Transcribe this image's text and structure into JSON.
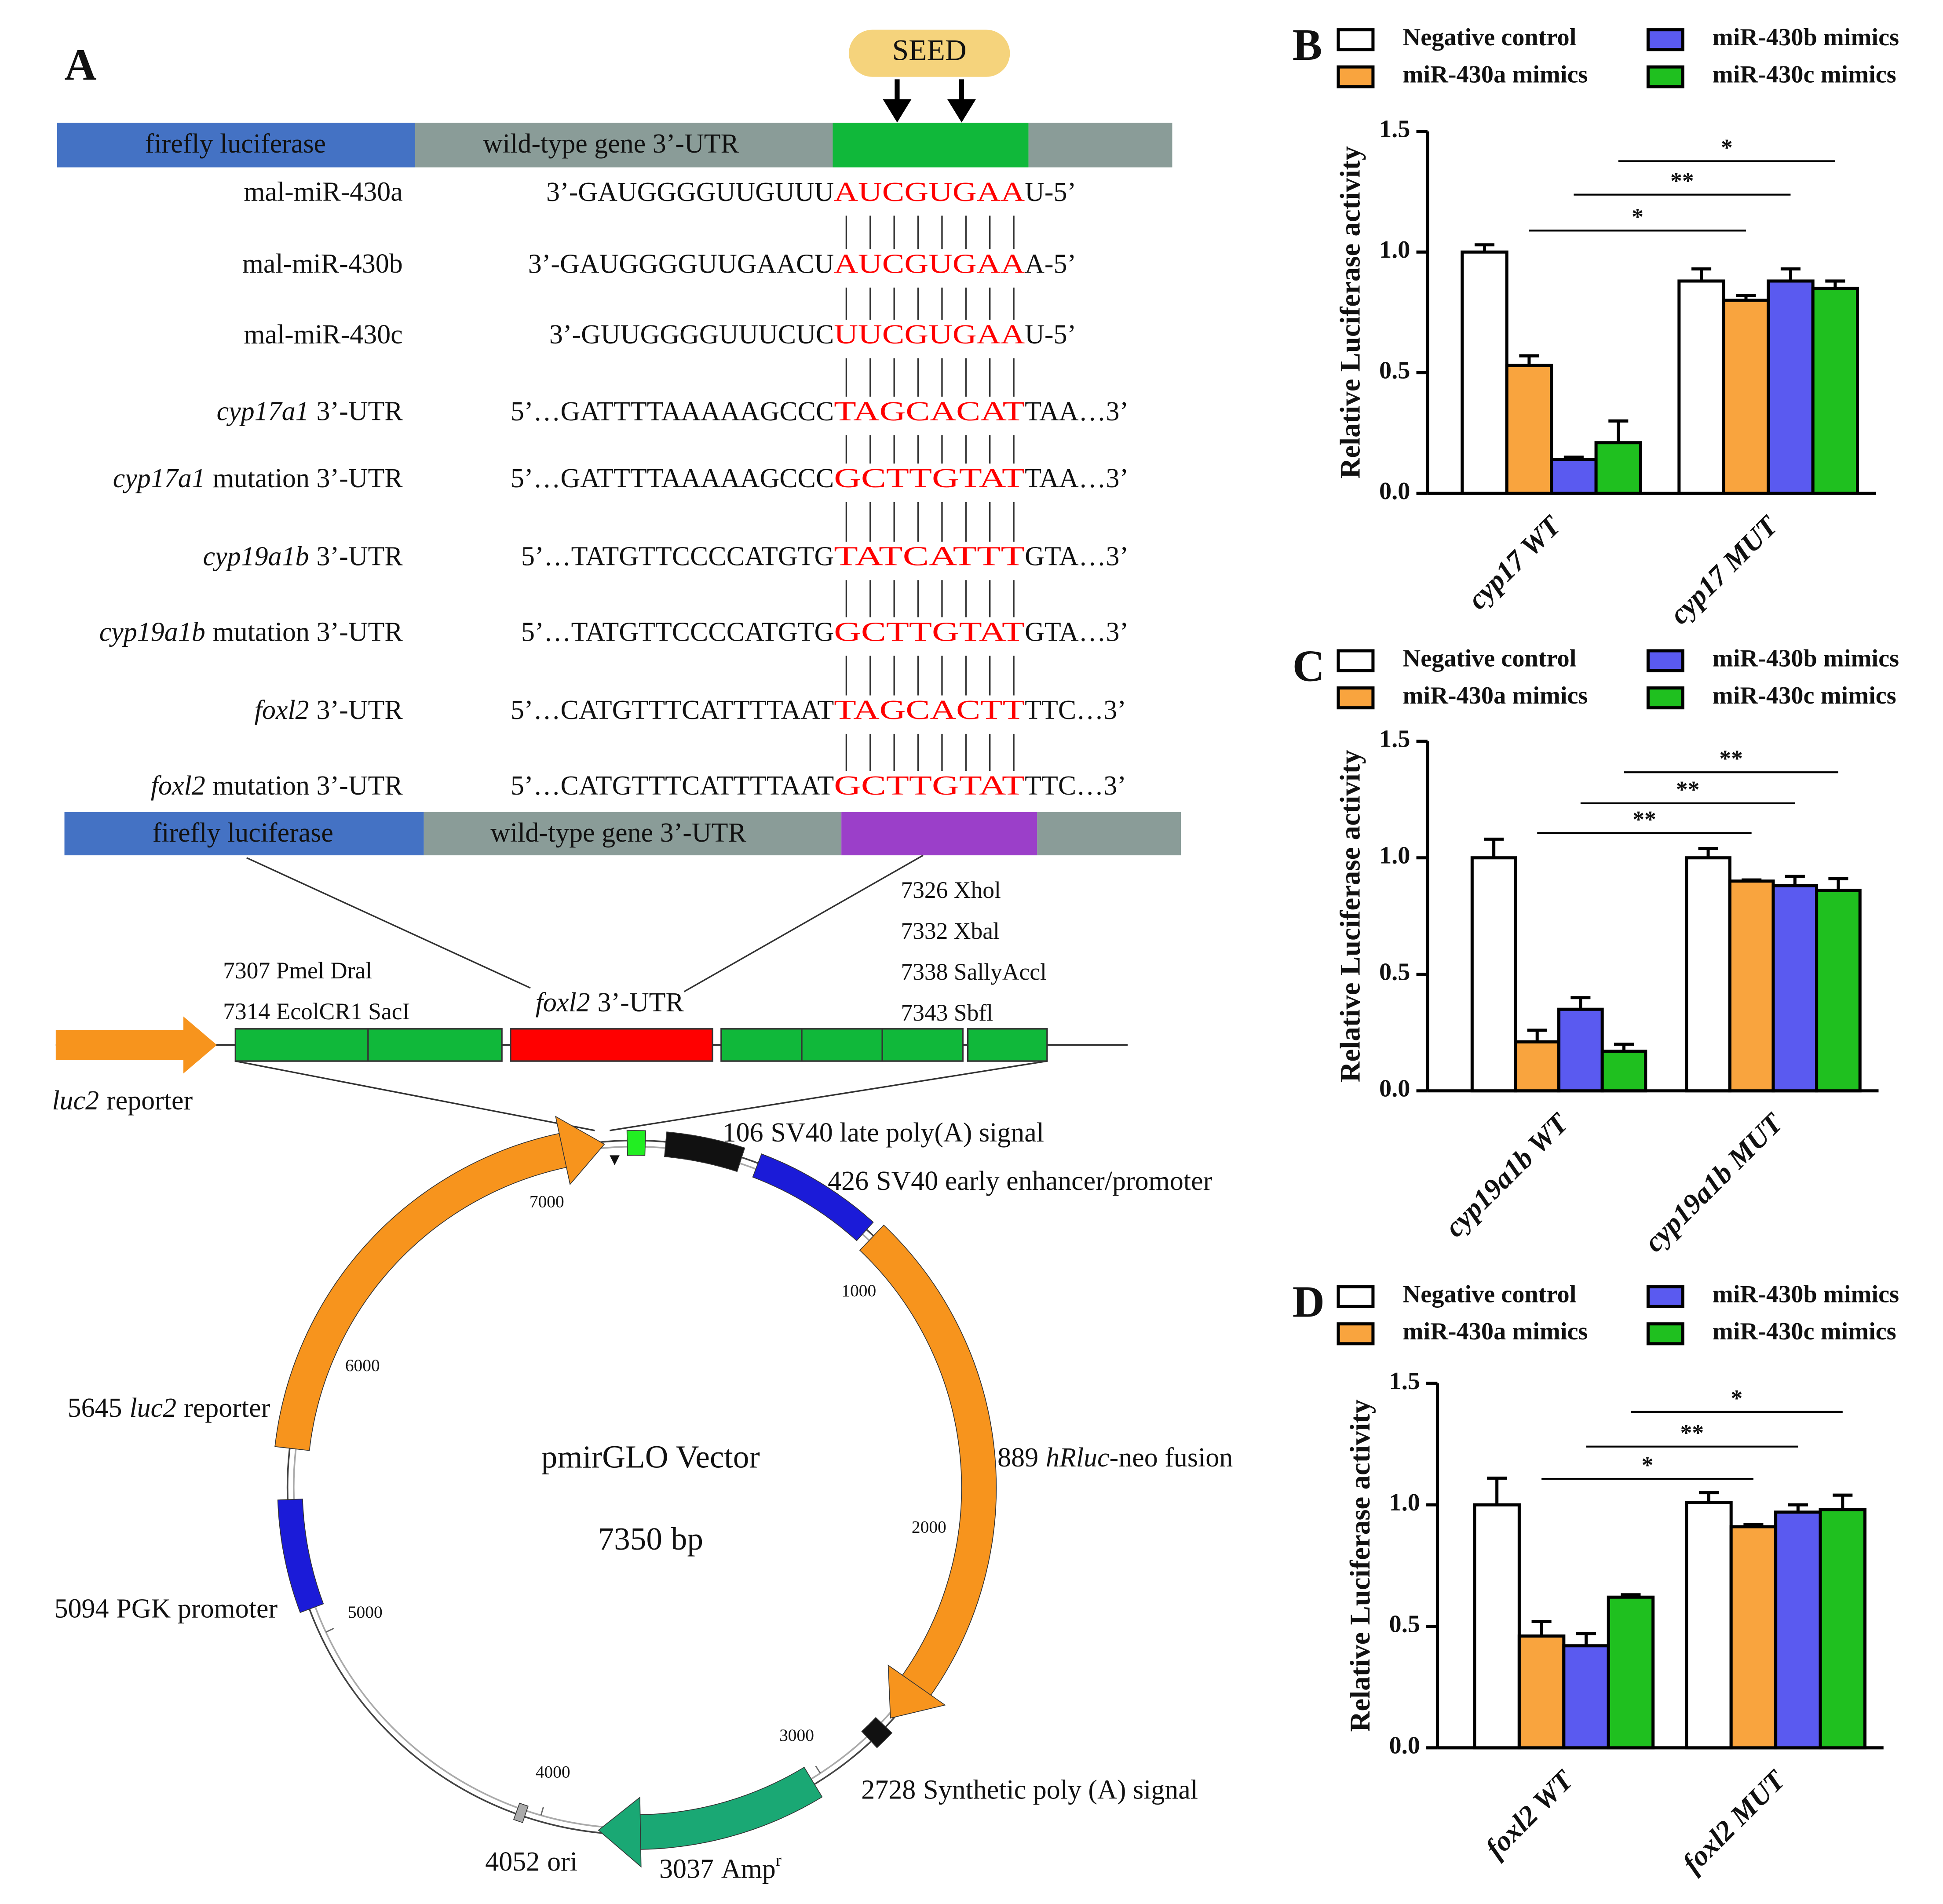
{
  "panel_a": {
    "label": "A",
    "seed": "SEED",
    "top_construct": {
      "luciferase": "firefly luciferase",
      "utr": "wild-type gene 3’-UTR"
    },
    "alignment": [
      {
        "name": "mal-miR-430a",
        "left": "3’-GAUGGGGUUGUUU",
        "seed": "AUCGUGAA",
        "right": "U-5’"
      },
      {
        "name": "mal-miR-430b",
        "left": "3’-GAUGGGGUUGAACU",
        "seed": "AUCGUGAA",
        "right": "A-5’"
      },
      {
        "name": "mal-miR-430c",
        "left": "3’-GUUGGGGUUUCUC",
        "seed": "UUCGUGAA",
        "right": "U-5’"
      },
      {
        "gene": "cyp17a1",
        "name": "3’-UTR",
        "left": "5’…GATTTTAAAAAGCCC",
        "seed": "TAGCACAT",
        "right": "TAA…3’"
      },
      {
        "gene": "cyp17a1",
        "name": "mutation 3’-UTR",
        "left": "5’…GATTTTAAAAAGCCC",
        "seed": "GCTTGTAT",
        "right": "TAA…3’"
      },
      {
        "gene": "cyp19a1b",
        "name": "3’-UTR",
        "left": "5’…TATGTTCCCCATGTG",
        "seed": "TATCATTT",
        "right": "GTA…3’"
      },
      {
        "gene": "cyp19a1b",
        "name": "mutation 3’-UTR",
        "left": "5’…TATGTTCCCCATGTG",
        "seed": "GCTTGTAT",
        "right": "GTA…3’"
      },
      {
        "gene": "foxl2",
        "name": "3’-UTR",
        "left": "5’…CATGTTTCATTTTAAT",
        "seed": "TAGCACTT",
        "right": "TTC…3’"
      },
      {
        "gene": "foxl2",
        "name": "mutation 3’-UTR",
        "left": "5’…CATGTTTCATTTTAAT",
        "seed": "GCTTGTAT",
        "right": "TTC…3’"
      }
    ],
    "bottom_construct": {
      "luciferase": "firefly luciferase",
      "utr": "wild-type gene 3’-UTR"
    },
    "sites_right": [
      "7326 Xhol",
      "7332 Xbal",
      "7338 SallyAccl",
      "7343 Sbfl"
    ],
    "sites_left": [
      "7307 Pmel Dral",
      "7314 EcolCR1 SacI"
    ],
    "insert": {
      "gene": "foxl2",
      "name": "3’-UTR"
    },
    "reporter": {
      "gene": "luc2",
      "name": "reporter"
    },
    "plasmid": {
      "name": "pmirGLO Vector",
      "length": 7350,
      "unit": "bp",
      "ticks": [
        1000,
        2000,
        3000,
        4000,
        5000,
        6000,
        7000
      ],
      "features": [
        {
          "position": 106,
          "name": "SV40 late poly(A) signal"
        },
        {
          "position": 426,
          "name": "SV40 early enhancer/promoter"
        },
        {
          "position": 889,
          "italic": "hRluc",
          "name": "-neo fusion"
        },
        {
          "position": 2728,
          "name": "Synthetic poly (A) signal"
        },
        {
          "position": 3037,
          "name": "Amp",
          "sup": "r"
        },
        {
          "position": 4052,
          "name": "ori"
        },
        {
          "position": 5094,
          "name": "PGK promoter"
        },
        {
          "position": 5645,
          "italic": "luc2",
          "name": "reporter"
        }
      ]
    }
  },
  "chart_data": [
    {
      "type": "bar",
      "label": "B",
      "ylabel": "Relative Luciferase activity",
      "categories": [
        "cyp17 WT",
        "cyp17 MUT"
      ],
      "series": [
        {
          "name": "Negative control",
          "color": "#ffffff",
          "values": [
            1.0,
            0.88
          ],
          "errors": [
            0.03,
            0.05
          ]
        },
        {
          "name": "miR-430a mimics",
          "color": "#f9a43e",
          "values": [
            0.53,
            0.8
          ],
          "errors": [
            0.04,
            0.02
          ]
        },
        {
          "name": "miR-430b mimics",
          "color": "#5a5af0",
          "values": [
            0.14,
            0.88
          ],
          "errors": [
            0.01,
            0.05
          ]
        },
        {
          "name": "miR-430c mimics",
          "color": "#1fc01f",
          "values": [
            0.21,
            0.85
          ],
          "errors": [
            0.09,
            0.03
          ]
        }
      ],
      "ylim": [
        0,
        1.5
      ],
      "yticks": [
        {
          "value": 0,
          "label": "0.0"
        },
        0.5,
        {
          "value": 1,
          "label": "1.0"
        },
        1.5
      ],
      "significance": [
        "*",
        "**",
        "*"
      ]
    },
    {
      "type": "bar",
      "label": "C",
      "ylabel": "Relative Luciferase activity",
      "categories": [
        "cyp19a1b WT",
        "cyp19a1b MUT"
      ],
      "series": [
        {
          "name": "Negative control",
          "color": "#ffffff",
          "values": [
            1.0,
            1.0
          ],
          "errors": [
            0.08,
            0.04
          ]
        },
        {
          "name": "miR-430a mimics",
          "color": "#f9a43e",
          "values": [
            0.21,
            0.9
          ],
          "errors": [
            0.05,
            0.005
          ]
        },
        {
          "name": "miR-430b mimics",
          "color": "#5a5af0",
          "values": [
            0.35,
            0.88
          ],
          "errors": [
            0.05,
            0.04
          ]
        },
        {
          "name": "miR-430c mimics",
          "color": "#1fc01f",
          "values": [
            0.17,
            0.86
          ],
          "errors": [
            0.03,
            0.05
          ]
        }
      ],
      "ylim": [
        0,
        1.5
      ],
      "yticks": [
        {
          "value": 0,
          "label": "0.0"
        },
        0.5,
        {
          "value": 1,
          "label": "1.0"
        },
        1.5
      ],
      "significance": [
        "**",
        "**",
        "**"
      ]
    },
    {
      "type": "bar",
      "label": "D",
      "ylabel": "Relative Luciferase activity",
      "categories": [
        "foxl2 WT",
        "foxl2 MUT"
      ],
      "series": [
        {
          "name": "Negative control",
          "color": "#ffffff",
          "values": [
            1.0,
            1.01
          ],
          "errors": [
            0.11,
            0.04
          ]
        },
        {
          "name": "miR-430a mimics",
          "color": "#f9a43e",
          "values": [
            0.46,
            0.91
          ],
          "errors": [
            0.06,
            0.01
          ]
        },
        {
          "name": "miR-430b mimics",
          "color": "#5a5af0",
          "values": [
            0.42,
            0.97
          ],
          "errors": [
            0.05,
            0.03
          ]
        },
        {
          "name": "miR-430c mimics",
          "color": "#1fc01f",
          "values": [
            0.62,
            0.98
          ],
          "errors": [
            0.01,
            0.06
          ]
        }
      ],
      "ylim": [
        0,
        1.5
      ],
      "yticks": [
        {
          "value": 0,
          "label": "0.0"
        },
        0.5,
        {
          "value": 1,
          "label": "1.0"
        },
        1.5
      ],
      "significance": [
        "*",
        "**",
        "*"
      ]
    }
  ]
}
